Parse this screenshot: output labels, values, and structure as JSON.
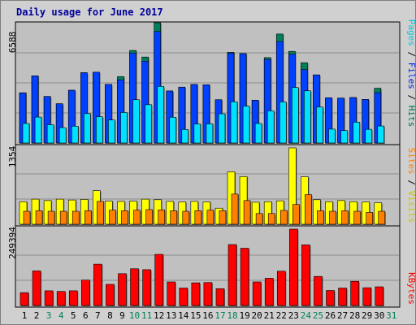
{
  "page": {
    "title": "Daily usage for June 2017"
  },
  "panels": {
    "hits": {
      "max_label": "6588",
      "legend": [
        {
          "text": "Pages",
          "color": "#00c8e0"
        },
        {
          "text": " / ",
          "color": "#000000"
        },
        {
          "text": "Files",
          "color": "#0020e0"
        },
        {
          "text": " / ",
          "color": "#000000"
        },
        {
          "text": "Hits",
          "color": "#007050"
        }
      ]
    },
    "visits": {
      "max_label": "1354",
      "legend": [
        {
          "text": "Sites",
          "color": "#ff8000"
        },
        {
          "text": " / ",
          "color": "#000000"
        },
        {
          "text": "Visits",
          "color": "#e0e000"
        }
      ]
    },
    "kbytes": {
      "max_label": "249394",
      "legend": [
        {
          "text": "KBytes",
          "color": "#ff0000"
        }
      ]
    }
  },
  "chart_data": {
    "type": "bar",
    "title": "Daily usage for June 2017",
    "categories": [
      "1",
      "2",
      "3",
      "4",
      "5",
      "6",
      "7",
      "8",
      "9",
      "10",
      "11",
      "12",
      "13",
      "14",
      "15",
      "16",
      "17",
      "18",
      "19",
      "20",
      "21",
      "22",
      "23",
      "24",
      "25",
      "26",
      "27",
      "28",
      "29",
      "30",
      "31"
    ],
    "weekend_days": [
      "3",
      "4",
      "10",
      "11",
      "17",
      "18",
      "24",
      "25",
      "31"
    ],
    "colors": {
      "hits": "#00805a",
      "files": "#0040ff",
      "pages": "#00e0ff",
      "visits": "#ffff00",
      "sites": "#ff8000",
      "kbytes": "#ff0000",
      "weekday_label": "#000000",
      "weekend_label": "#00805a"
    },
    "panels": [
      {
        "name": "Hits",
        "ylim": [
          0,
          6588
        ],
        "series": [
          {
            "name": "Hits",
            "values": [
              2750,
              3680,
              2550,
              2150,
              2890,
              3850,
              3880,
              3210,
              3640,
              5070,
              4710,
              6590,
              2850,
              3060,
              3210,
              3190,
              2370,
              4970,
              4900,
              2340,
              4680,
              5970,
              5020,
              4400,
              3730,
              2480,
              2460,
              2490,
              2390,
              3000,
              null
            ]
          },
          {
            "name": "Files",
            "values": [
              2750,
              3680,
              2550,
              2150,
              2890,
              3850,
              3880,
              3210,
              3460,
              4930,
              4480,
              6110,
              2850,
              3060,
              3210,
              3190,
              2370,
              4920,
              4900,
              2340,
              4580,
              5560,
              4860,
              4020,
              3730,
              2480,
              2460,
              2490,
              2390,
              2760,
              null
            ]
          },
          {
            "name": "Pages",
            "values": [
              1070,
              1420,
              1000,
              840,
              920,
              1610,
              1440,
              1260,
              1670,
              2370,
              2100,
              3100,
              1410,
              740,
              1040,
              1050,
              1600,
              2260,
              2020,
              1070,
              1760,
              2250,
              3040,
              2860,
              1970,
              760,
              680,
              1140,
              750,
              930,
              null
            ]
          }
        ]
      },
      {
        "name": "Visits",
        "ylim": [
          0,
          1354
        ],
        "series": [
          {
            "name": "Visits",
            "values": [
              400,
              445,
              420,
              445,
              430,
              440,
              595,
              410,
              405,
              410,
              445,
              435,
              405,
              395,
              405,
              395,
              285,
              930,
              845,
              390,
              400,
              415,
              1354,
              840,
              435,
              400,
              420,
              400,
              395,
              380,
              null
            ]
          },
          {
            "name": "Sites",
            "values": [
              230,
              240,
              230,
              230,
              230,
              240,
              405,
              250,
              240,
              250,
              260,
              255,
              240,
              230,
              240,
              250,
              240,
              535,
              420,
              190,
              190,
              245,
              350,
              525,
              240,
              230,
              240,
              230,
              210,
              230,
              null
            ]
          }
        ]
      },
      {
        "name": "KBytes",
        "ylim": [
          0,
          249394
        ],
        "series": [
          {
            "name": "KBytes",
            "values": [
              42000,
              113000,
              48000,
              46000,
              48000,
              83000,
              135000,
              69000,
              104000,
              120000,
              117000,
              167000,
              77000,
              57000,
              74000,
              75000,
              55000,
              199000,
              187000,
              77000,
              89000,
              112000,
              249394,
              198000,
              95000,
              49000,
              57000,
              79000,
              58000,
              61000,
              null
            ]
          }
        ]
      }
    ]
  }
}
